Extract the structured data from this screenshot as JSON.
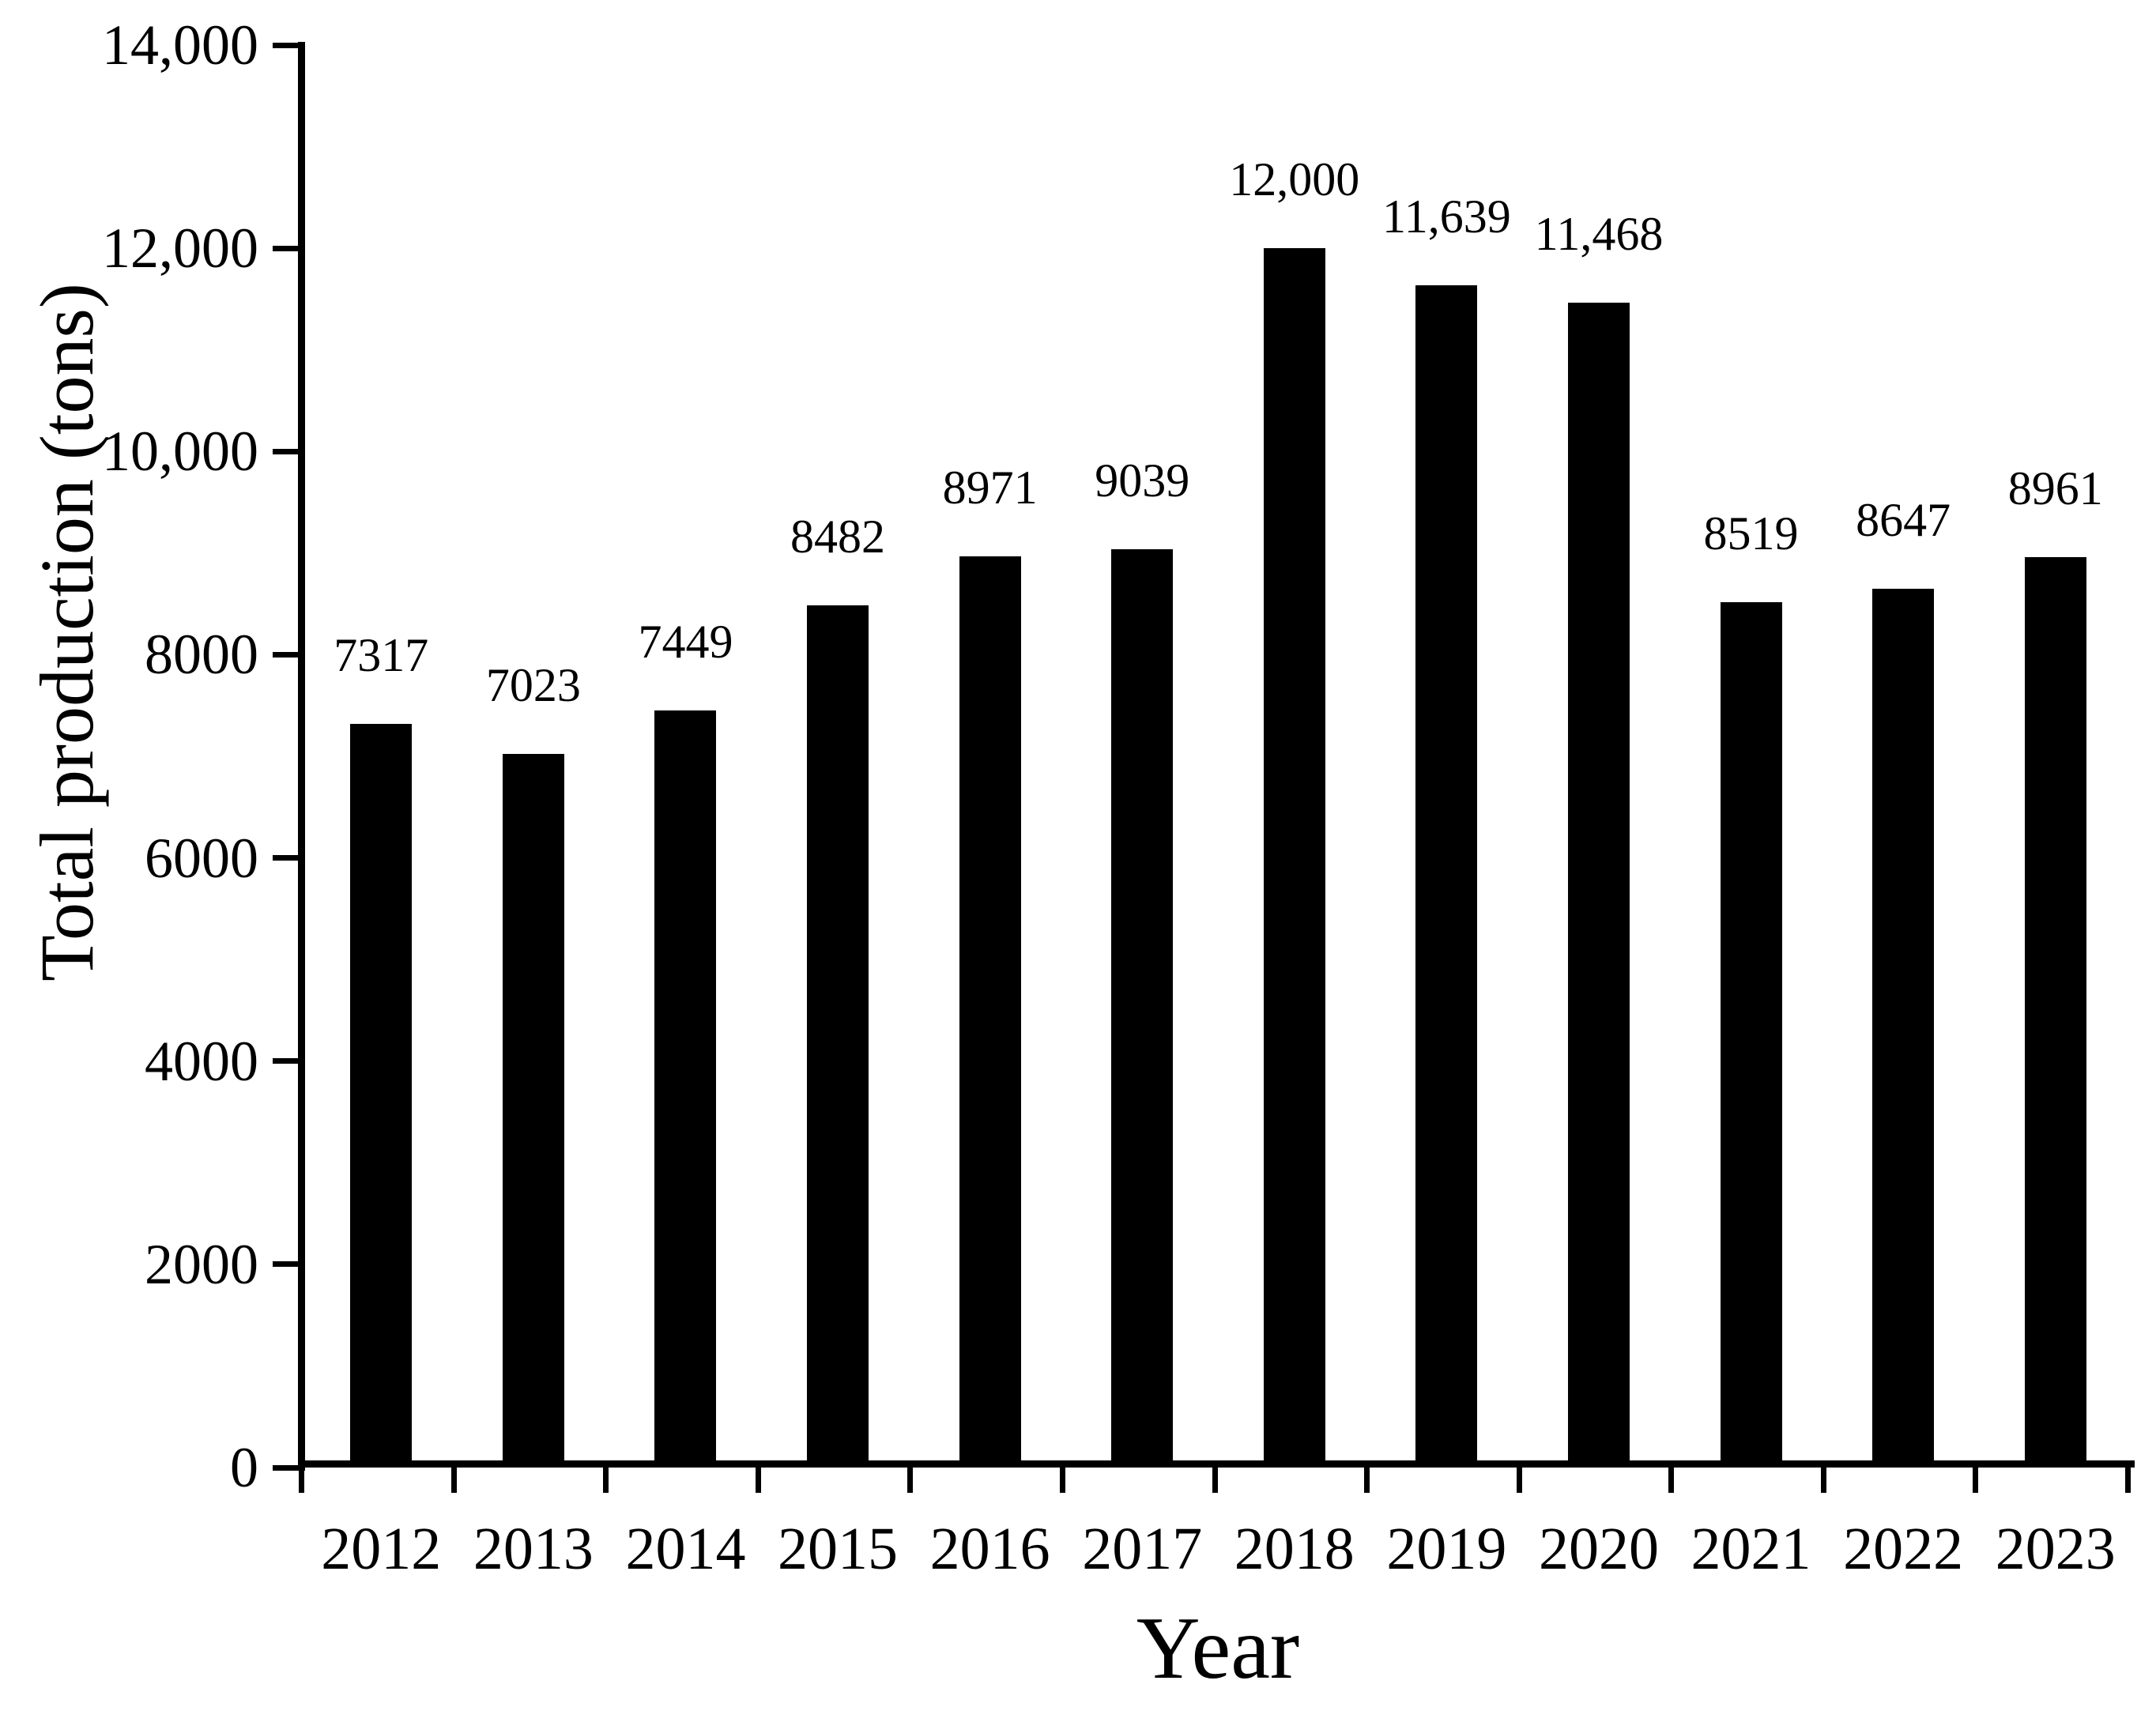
{
  "figure": {
    "background": "#ffffff",
    "bar_color": "#000000",
    "axis_color": "#000000",
    "text_color": "#000000"
  },
  "chart_data": {
    "type": "bar",
    "title": "",
    "xlabel": "Year",
    "ylabel": "Total production (tons)",
    "categories": [
      "2012",
      "2013",
      "2014",
      "2015",
      "2016",
      "2017",
      "2018",
      "2019",
      "2020",
      "2021",
      "2022",
      "2023"
    ],
    "values": [
      7317,
      7023,
      7449,
      8482,
      8971,
      9039,
      12000,
      11639,
      11468,
      8519,
      8647,
      8961
    ],
    "bar_labels": [
      "7317",
      "7023",
      "7449",
      "8482",
      "8971",
      "9039",
      "12,000",
      "11,639",
      "11,468",
      "8519",
      "8647",
      "8961"
    ],
    "ylim": [
      0,
      14000
    ],
    "y_tick_step": 2000,
    "y_tick_labels": [
      "0",
      "2000",
      "4000",
      "6000",
      "8000",
      "10,000",
      "12,000",
      "14,000"
    ],
    "grid": false,
    "legend": null,
    "bar_series_name": "Total production"
  }
}
